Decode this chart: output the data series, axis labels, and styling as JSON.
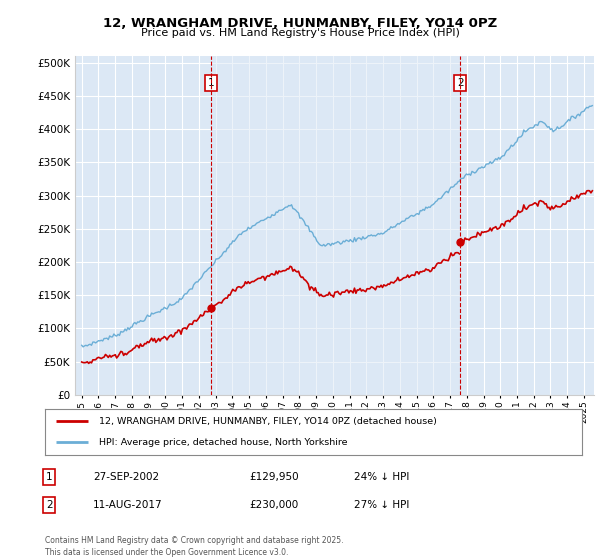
{
  "title": "12, WRANGHAM DRIVE, HUNMANBY, FILEY, YO14 0PZ",
  "subtitle": "Price paid vs. HM Land Registry's House Price Index (HPI)",
  "ytick_values": [
    0,
    50000,
    100000,
    150000,
    200000,
    250000,
    300000,
    350000,
    400000,
    450000,
    500000
  ],
  "background_color": "#ffffff",
  "plot_bg_color": "#dce8f5",
  "grid_color": "#ffffff",
  "hpi_color": "#6baed6",
  "price_color": "#cc0000",
  "vline_color": "#cc0000",
  "shade_color": "#dce8f5",
  "sale1_year": 2002.74,
  "sale1_price": 129950,
  "sale2_year": 2017.61,
  "sale2_price": 230000,
  "legend_label1": "12, WRANGHAM DRIVE, HUNMANBY, FILEY, YO14 0PZ (detached house)",
  "legend_label2": "HPI: Average price, detached house, North Yorkshire",
  "table_row1": [
    "1",
    "27-SEP-2002",
    "£129,950",
    "24% ↓ HPI"
  ],
  "table_row2": [
    "2",
    "11-AUG-2017",
    "£230,000",
    "27% ↓ HPI"
  ],
  "footnote": "Contains HM Land Registry data © Crown copyright and database right 2025.\nThis data is licensed under the Open Government Licence v3.0.",
  "xticks": [
    1995,
    1996,
    1997,
    1998,
    1999,
    2000,
    2001,
    2002,
    2003,
    2004,
    2005,
    2006,
    2007,
    2008,
    2009,
    2010,
    2011,
    2012,
    2013,
    2014,
    2015,
    2016,
    2017,
    2018,
    2019,
    2020,
    2021,
    2022,
    2023,
    2024,
    2025
  ],
  "xlim_start": 1994.6,
  "xlim_end": 2025.6,
  "ylim_top": 510000
}
